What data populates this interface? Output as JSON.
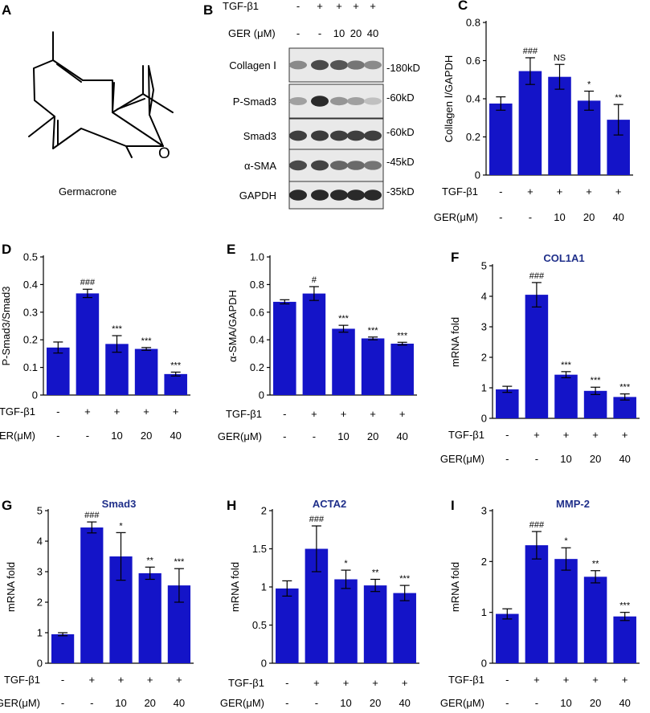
{
  "panel_a": {
    "letter": "A",
    "compound_name": "Germacrone",
    "oxygen_label": "O"
  },
  "panel_b": {
    "letter": "B",
    "treatment_rows": [
      {
        "label": "TGF-β1",
        "values": [
          "-",
          "+",
          "+",
          "+",
          "+"
        ]
      },
      {
        "label": "GER (μM)",
        "values": [
          "-",
          "-",
          "10",
          "20",
          "40"
        ]
      }
    ],
    "blots": [
      {
        "name": "Collagen Ⅰ",
        "size": "-180kD",
        "intensities": [
          0.45,
          0.75,
          0.7,
          0.55,
          0.45
        ]
      },
      {
        "name": "P-Smad3",
        "size": "-60kD",
        "intensities": [
          0.35,
          0.9,
          0.4,
          0.35,
          0.2
        ]
      },
      {
        "name": "Smad3",
        "size": "-60kD",
        "intensities": [
          0.8,
          0.82,
          0.8,
          0.8,
          0.8
        ]
      },
      {
        "name": "α-SMA",
        "size": "-45kD",
        "intensities": [
          0.75,
          0.78,
          0.62,
          0.6,
          0.55
        ]
      },
      {
        "name": "GAPDH",
        "size": "-35kD",
        "intensities": [
          0.9,
          0.9,
          0.9,
          0.9,
          0.9
        ]
      }
    ]
  },
  "chart_data": [
    {
      "letter": "C",
      "type": "bar",
      "title": "",
      "ylabel": "Collagen Ⅰ/GAPDH",
      "xlabel": "",
      "ylim": [
        0,
        0.8
      ],
      "yticks": [
        "0",
        "0.2",
        "0.4",
        "0.6",
        "0.8"
      ],
      "ytick_values": [
        0,
        0.2,
        0.4,
        0.6,
        0.8
      ],
      "categories": [
        "1",
        "2",
        "3",
        "4",
        "5"
      ],
      "values": [
        0.375,
        0.545,
        0.515,
        0.39,
        0.29
      ],
      "errors": [
        0.035,
        0.07,
        0.065,
        0.05,
        0.08
      ],
      "significance": [
        "",
        "###",
        "NS",
        "*",
        "**"
      ],
      "rows": [
        {
          "label": "TGF-β1",
          "values": [
            "-",
            "+",
            "+",
            "+",
            "+"
          ]
        },
        {
          "label": "GER(μM)",
          "values": [
            "-",
            "-",
            "10",
            "20",
            "40"
          ]
        }
      ]
    },
    {
      "letter": "D",
      "type": "bar",
      "title": "",
      "ylabel": "P-Smad3/Smad3",
      "xlabel": "",
      "ylim": [
        0,
        0.5
      ],
      "yticks": [
        "0",
        "0.1",
        "0.2",
        "0.3",
        "0.4",
        "0.5"
      ],
      "ytick_values": [
        0,
        0.1,
        0.2,
        0.3,
        0.4,
        0.5
      ],
      "categories": [
        "1",
        "2",
        "3",
        "4",
        "5"
      ],
      "values": [
        0.172,
        0.368,
        0.185,
        0.167,
        0.076
      ],
      "errors": [
        0.02,
        0.015,
        0.03,
        0.005,
        0.007
      ],
      "significance": [
        "",
        "###",
        "***",
        "***",
        "***"
      ],
      "rows": [
        {
          "label": "TGF-β1",
          "values": [
            "-",
            "+",
            "+",
            "+",
            "+"
          ]
        },
        {
          "label": "GER(μM)",
          "values": [
            "-",
            "-",
            "10",
            "20",
            "40"
          ]
        }
      ]
    },
    {
      "letter": "E",
      "type": "bar",
      "title": "",
      "ylabel": "α-SMA/GAPDH",
      "xlabel": "",
      "ylim": [
        0,
        1.0
      ],
      "yticks": [
        "0",
        "0.2",
        "0.4",
        "0.6",
        "0.8",
        "1.0"
      ],
      "ytick_values": [
        0,
        0.2,
        0.4,
        0.6,
        0.8,
        1.0
      ],
      "categories": [
        "1",
        "2",
        "3",
        "4",
        "5"
      ],
      "values": [
        0.675,
        0.735,
        0.48,
        0.41,
        0.372
      ],
      "errors": [
        0.015,
        0.05,
        0.025,
        0.01,
        0.01
      ],
      "significance": [
        "",
        "#",
        "***",
        "***",
        "***"
      ],
      "rows": [
        {
          "label": "TGF-β1",
          "values": [
            "-",
            "+",
            "+",
            "+",
            "+"
          ]
        },
        {
          "label": "GER(μM)",
          "values": [
            "-",
            "-",
            "10",
            "20",
            "40"
          ]
        }
      ]
    },
    {
      "letter": "F",
      "type": "bar",
      "title": "COL1A1",
      "ylabel": "mRNA fold",
      "xlabel": "",
      "ylim": [
        0,
        5
      ],
      "yticks": [
        "0",
        "1",
        "2",
        "3",
        "4",
        "5"
      ],
      "ytick_values": [
        0,
        1,
        2,
        3,
        4,
        5
      ],
      "categories": [
        "1",
        "2",
        "3",
        "4",
        "5"
      ],
      "values": [
        0.95,
        4.05,
        1.43,
        0.9,
        0.7
      ],
      "errors": [
        0.1,
        0.4,
        0.1,
        0.12,
        0.1
      ],
      "significance": [
        "",
        "###",
        "***",
        "***",
        "***"
      ],
      "rows": [
        {
          "label": "TGF-β1",
          "values": [
            "-",
            "+",
            "+",
            "+",
            "+"
          ]
        },
        {
          "label": "GER(μM)",
          "values": [
            "-",
            "-",
            "10",
            "20",
            "40"
          ]
        }
      ]
    },
    {
      "letter": "G",
      "type": "bar",
      "title": "Smad3",
      "ylabel": "mRNA fold",
      "xlabel": "",
      "ylim": [
        0,
        5
      ],
      "yticks": [
        "0",
        "1",
        "2",
        "3",
        "4",
        "5"
      ],
      "ytick_values": [
        0,
        1,
        2,
        3,
        4,
        5
      ],
      "categories": [
        "1",
        "2",
        "3",
        "4",
        "5"
      ],
      "values": [
        0.95,
        4.45,
        3.5,
        2.95,
        2.55
      ],
      "errors": [
        0.05,
        0.18,
        0.78,
        0.2,
        0.55
      ],
      "significance": [
        "",
        "###",
        "*",
        "**",
        "***"
      ],
      "rows": [
        {
          "label": "TGF-β1",
          "values": [
            "-",
            "+",
            "+",
            "+",
            "+"
          ]
        },
        {
          "label": "GER(μM)",
          "values": [
            "-",
            "-",
            "10",
            "20",
            "40"
          ]
        }
      ]
    },
    {
      "letter": "H",
      "type": "bar",
      "title": "ACTA2",
      "ylabel": "mRNA fold",
      "xlabel": "",
      "ylim": [
        0,
        2
      ],
      "yticks": [
        "0",
        "0.5",
        "1",
        "1.5",
        "2"
      ],
      "ytick_values": [
        0,
        0.5,
        1,
        1.5,
        2
      ],
      "categories": [
        "1",
        "2",
        "3",
        "4",
        "5"
      ],
      "values": [
        0.98,
        1.5,
        1.1,
        1.02,
        0.92
      ],
      "errors": [
        0.1,
        0.3,
        0.12,
        0.08,
        0.1
      ],
      "significance": [
        "",
        "###",
        "*",
        "**",
        "***"
      ],
      "rows": [
        {
          "label": "TGF-β1",
          "values": [
            "-",
            "+",
            "+",
            "+",
            "+"
          ]
        },
        {
          "label": "GER(μM)",
          "values": [
            "-",
            "-",
            "10",
            "20",
            "40"
          ]
        }
      ]
    },
    {
      "letter": "I",
      "type": "bar",
      "title": "MMP-2",
      "ylabel": "mRNA fold",
      "xlabel": "",
      "ylim": [
        0,
        3
      ],
      "yticks": [
        "0",
        "1",
        "2",
        "3"
      ],
      "ytick_values": [
        0,
        1,
        2,
        3
      ],
      "categories": [
        "1",
        "2",
        "3",
        "4",
        "5"
      ],
      "values": [
        0.97,
        2.32,
        2.05,
        1.7,
        0.92
      ],
      "errors": [
        0.1,
        0.27,
        0.22,
        0.12,
        0.08
      ],
      "significance": [
        "",
        "###",
        "*",
        "**",
        "***"
      ],
      "rows": [
        {
          "label": "TGF-β1",
          "values": [
            "-",
            "+",
            "+",
            "+",
            "+"
          ]
        },
        {
          "label": "GER(μM)",
          "values": [
            "-",
            "-",
            "10",
            "20",
            "40"
          ]
        }
      ]
    }
  ]
}
